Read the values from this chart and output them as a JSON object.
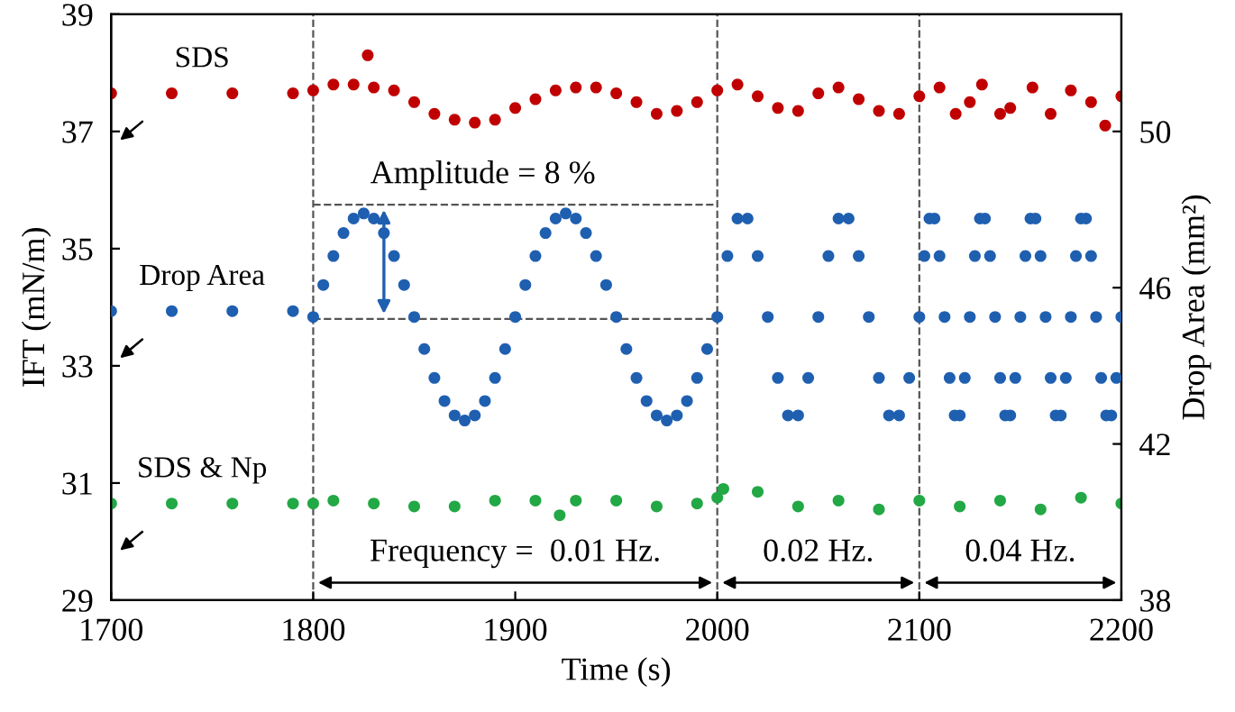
{
  "chart_data": {
    "type": "scatter",
    "xlabel": "Time (s)",
    "ylabel": "IFT (mN/m)",
    "y2label": "Drop Area (mm²)",
    "xlim": [
      1700,
      2200
    ],
    "xticks": [
      1700,
      1800,
      1900,
      2000,
      2100,
      2200
    ],
    "ylim": [
      29,
      39
    ],
    "yticks": [
      29,
      31,
      33,
      35,
      37,
      39
    ],
    "y2lim": [
      38,
      53
    ],
    "y2ticks": [
      38,
      42,
      46,
      50
    ],
    "marker": "circle",
    "grid": false,
    "series": [
      {
        "name": "SDS",
        "color": "#c00000",
        "x": [
          1700,
          1730,
          1760,
          1790,
          1800,
          1810,
          1820,
          1827,
          1830,
          1840,
          1850,
          1860,
          1870,
          1880,
          1890,
          1900,
          1910,
          1920,
          1930,
          1940,
          1950,
          1960,
          1970,
          1980,
          1990,
          2000,
          2010,
          2020,
          2030,
          2040,
          2050,
          2060,
          2070,
          2080,
          2090,
          2100,
          2110,
          2118,
          2125,
          2131,
          2140,
          2145,
          2156,
          2165,
          2175,
          2185,
          2192,
          2200
        ],
        "values": [
          37.65,
          37.65,
          37.65,
          37.65,
          37.7,
          37.8,
          37.8,
          38.3,
          37.75,
          37.7,
          37.5,
          37.3,
          37.2,
          37.15,
          37.2,
          37.4,
          37.55,
          37.7,
          37.75,
          37.75,
          37.65,
          37.5,
          37.3,
          37.35,
          37.5,
          37.7,
          37.8,
          37.6,
          37.4,
          37.35,
          37.65,
          37.75,
          37.55,
          37.35,
          37.3,
          37.6,
          37.75,
          37.3,
          37.5,
          37.8,
          37.3,
          37.4,
          37.75,
          37.3,
          37.7,
          37.5,
          37.1,
          37.6
        ]
      },
      {
        "name": "Drop Area",
        "color": "#1f5fb0",
        "axis": "y2",
        "x": [
          1700,
          1730,
          1760,
          1790,
          1800,
          1805,
          1810,
          1815,
          1820,
          1825,
          1830,
          1835,
          1840,
          1845,
          1850,
          1855,
          1860,
          1865,
          1870,
          1875,
          1880,
          1885,
          1890,
          1895,
          1900,
          1905,
          1910,
          1915,
          1920,
          1925,
          1930,
          1935,
          1940,
          1945,
          1950,
          1955,
          1960,
          1965,
          1970,
          1975,
          1980,
          1985,
          1990,
          1995,
          2000,
          2005,
          2010,
          2015,
          2020,
          2025,
          2030,
          2035,
          2040,
          2045,
          2050,
          2055,
          2060,
          2065,
          2070,
          2075,
          2080,
          2085,
          2090,
          2095,
          2100,
          2102.5,
          2105,
          2107.5,
          2110,
          2112.5,
          2115,
          2117.5,
          2120,
          2122.5,
          2125,
          2127.5,
          2130,
          2132.5,
          2135,
          2137.5,
          2140,
          2142.5,
          2145,
          2147.5,
          2150,
          2152.5,
          2155,
          2157.5,
          2160,
          2162.5,
          2165,
          2167.5,
          2170,
          2172.5,
          2175,
          2177.5,
          2180,
          2182.5,
          2185,
          2187.5,
          2190,
          2192.5,
          2195,
          2197.5,
          2200
        ],
        "values": [
          45.4,
          45.4,
          45.4,
          45.4,
          45.25,
          46.07,
          46.81,
          47.4,
          47.77,
          47.9,
          47.77,
          47.4,
          46.81,
          46.07,
          45.25,
          44.43,
          43.69,
          43.1,
          42.73,
          42.6,
          42.73,
          43.1,
          43.69,
          44.43,
          45.25,
          46.07,
          46.81,
          47.4,
          47.77,
          47.9,
          47.77,
          47.4,
          46.81,
          46.07,
          45.25,
          44.43,
          43.69,
          43.1,
          42.73,
          42.6,
          42.73,
          43.1,
          43.69,
          44.43,
          45.25,
          46.81,
          47.77,
          47.77,
          46.81,
          45.25,
          43.69,
          42.73,
          42.73,
          43.69,
          45.25,
          46.81,
          47.77,
          47.77,
          46.81,
          45.25,
          43.69,
          42.73,
          42.73,
          43.69,
          45.25,
          46.81,
          47.77,
          47.77,
          46.81,
          45.25,
          43.69,
          42.73,
          42.73,
          43.69,
          45.25,
          46.81,
          47.77,
          47.77,
          46.81,
          45.25,
          43.69,
          42.73,
          42.73,
          43.69,
          45.25,
          46.81,
          47.77,
          47.77,
          46.81,
          45.25,
          43.69,
          42.73,
          42.73,
          43.69,
          45.25,
          46.81,
          47.77,
          47.77,
          46.81,
          45.25,
          43.69,
          42.73,
          42.73,
          43.69,
          45.25
        ]
      },
      {
        "name": "SDS & Np",
        "color": "#22a845",
        "x": [
          1700,
          1730,
          1760,
          1790,
          1800,
          1810,
          1830,
          1850,
          1870,
          1890,
          1910,
          1922,
          1930,
          1950,
          1970,
          1990,
          2000,
          2003,
          2020,
          2040,
          2060,
          2080,
          2100,
          2120,
          2140,
          2160,
          2180,
          2200
        ],
        "values": [
          30.65,
          30.65,
          30.65,
          30.65,
          30.65,
          30.7,
          30.65,
          30.6,
          30.6,
          30.7,
          30.7,
          30.45,
          30.7,
          30.7,
          30.6,
          30.65,
          30.75,
          30.9,
          30.85,
          30.6,
          30.7,
          30.55,
          30.7,
          30.6,
          30.7,
          30.55,
          30.75,
          30.65
        ]
      }
    ],
    "ref_lines": [
      {
        "axis": "x",
        "value": 1800,
        "line_style": "dashed",
        "color": "#555555"
      },
      {
        "axis": "x",
        "value": 2000,
        "line_style": "dashed",
        "color": "#555555"
      },
      {
        "axis": "x",
        "value": 2100,
        "line_style": "dashed",
        "color": "#555555"
      },
      {
        "axis": "y",
        "value": 35.75,
        "line_style": "dashed",
        "color": "#555555"
      },
      {
        "axis": "y",
        "value": 33.8,
        "line_style": "dashed",
        "color": "#555555"
      }
    ],
    "annotations": [
      "Amplitude = 8 %",
      "Frequency =  0.01 Hz.",
      "0.02 Hz.",
      "0.04 Hz."
    ]
  }
}
